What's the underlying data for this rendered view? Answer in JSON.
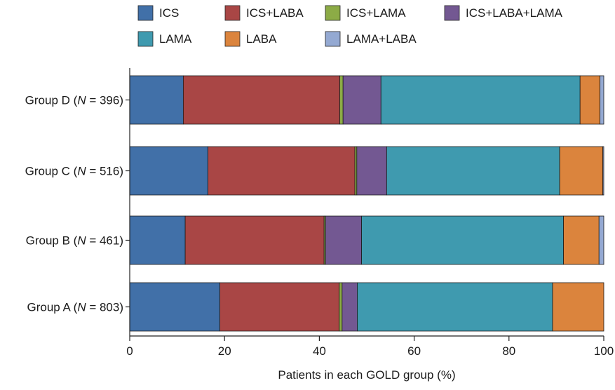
{
  "chart_data": {
    "type": "bar",
    "orientation": "horizontal",
    "stacked": true,
    "title": "",
    "xlabel": "Patients in each GOLD group (%)",
    "ylabel": "",
    "xlim": [
      0,
      100
    ],
    "xticks": [
      0,
      20,
      40,
      60,
      80,
      100
    ],
    "grid": false,
    "legend_position": "top",
    "categories": [
      {
        "name": "Group D",
        "n": "396"
      },
      {
        "name": "Group C",
        "n": "516"
      },
      {
        "name": "Group B",
        "n": "461"
      },
      {
        "name": "Group A",
        "n": "803"
      }
    ],
    "n_label": "N",
    "series": [
      {
        "name": "ICS",
        "color": "#4170a8",
        "values": [
          11.3,
          16.5,
          11.7,
          19.0
        ]
      },
      {
        "name": "ICS+LABA",
        "color": "#a94645",
        "values": [
          33.0,
          31.0,
          29.3,
          25.2
        ]
      },
      {
        "name": "ICS+LAMA",
        "color": "#8cab46",
        "values": [
          0.7,
          0.4,
          0.3,
          0.6
        ]
      },
      {
        "name": "ICS+LABA+LAMA",
        "color": "#735892",
        "values": [
          8.0,
          6.3,
          7.6,
          3.2
        ]
      },
      {
        "name": "LAMA",
        "color": "#3f9aaf",
        "values": [
          42.0,
          36.5,
          42.6,
          41.2
        ]
      },
      {
        "name": "LABA",
        "color": "#db843d",
        "values": [
          4.2,
          9.1,
          7.5,
          10.8
        ]
      },
      {
        "name": "LAMA+LABA",
        "color": "#94a9d2",
        "values": [
          0.8,
          0.2,
          1.0,
          0.0
        ]
      }
    ]
  }
}
